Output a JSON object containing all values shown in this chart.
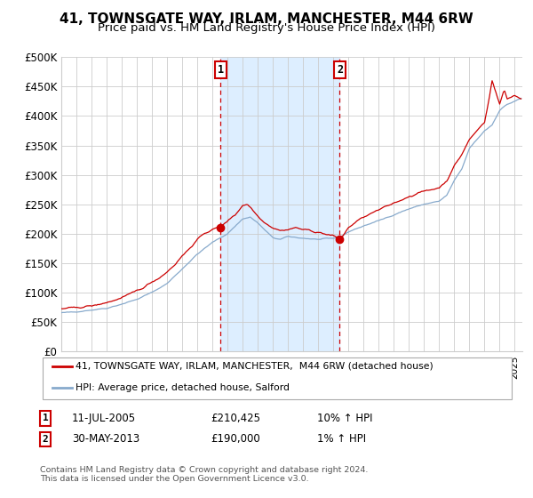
{
  "title": "41, TOWNSGATE WAY, IRLAM, MANCHESTER, M44 6RW",
  "subtitle": "Price paid vs. HM Land Registry's House Price Index (HPI)",
  "ylim": [
    0,
    500000
  ],
  "yticks": [
    0,
    50000,
    100000,
    150000,
    200000,
    250000,
    300000,
    350000,
    400000,
    450000,
    500000
  ],
  "ytick_labels": [
    "£0",
    "£50K",
    "£100K",
    "£150K",
    "£200K",
    "£250K",
    "£300K",
    "£350K",
    "£400K",
    "£450K",
    "£500K"
  ],
  "xlim_start": 1995.0,
  "xlim_end": 2025.5,
  "vline1_x": 2005.53,
  "vline2_x": 2013.42,
  "vline1_label": "1",
  "vline2_label": "2",
  "legend_line1": "41, TOWNSGATE WAY, IRLAM, MANCHESTER,  M44 6RW (detached house)",
  "legend_line2": "HPI: Average price, detached house, Salford",
  "annotation1_num": "1",
  "annotation1_date": "11-JUL-2005",
  "annotation1_price": "£210,425",
  "annotation1_hpi": "10% ↑ HPI",
  "annotation2_num": "2",
  "annotation2_date": "30-MAY-2013",
  "annotation2_price": "£190,000",
  "annotation2_hpi": "1% ↑ HPI",
  "footer": "Contains HM Land Registry data © Crown copyright and database right 2024.\nThis data is licensed under the Open Government Licence v3.0.",
  "red_line_color": "#cc0000",
  "blue_line_color": "#88aacc",
  "shade_color": "#ddeeff",
  "background_color": "#ffffff",
  "grid_color": "#cccccc",
  "title_fontsize": 11,
  "subtitle_fontsize": 9.5,
  "sale1_price": 210425,
  "sale2_price": 190000
}
